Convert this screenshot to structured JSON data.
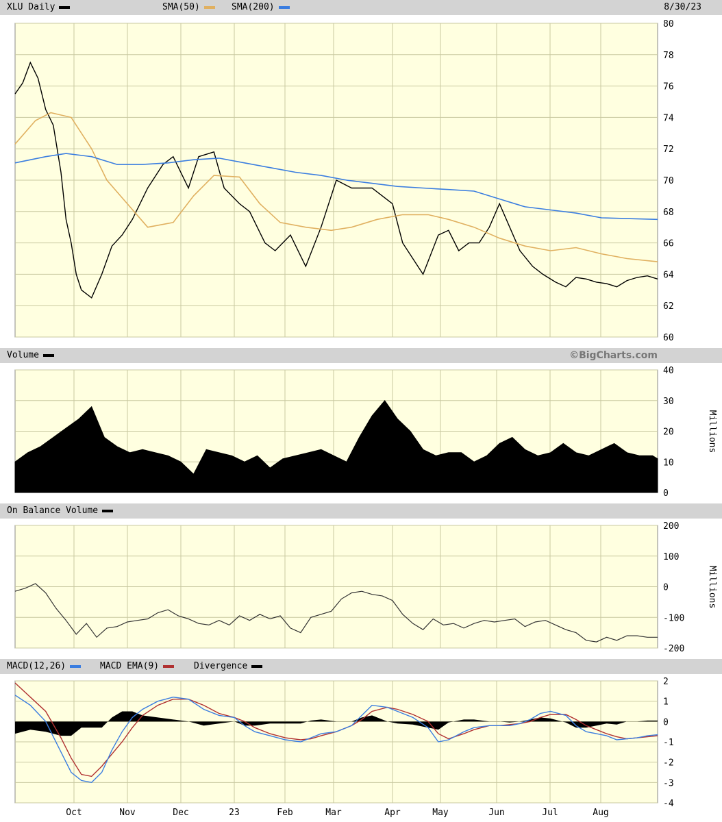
{
  "price_header": {
    "symbol_label": "XLU Daily",
    "sma50_label": "SMA(50)",
    "sma200_label": "SMA(200)",
    "date_label": "8/30/23",
    "sma50_color": "#e0b060",
    "sma200_color": "#3a7de0",
    "price_color": "#000000"
  },
  "volume_header": {
    "label": "Volume",
    "watermark": "©BigCharts.com"
  },
  "obv_header": {
    "label": "On Balance Volume"
  },
  "macd_header": {
    "macd_label": "MACD(12,26)",
    "ema_label": "MACD EMA(9)",
    "div_label": "Divergence",
    "macd_color": "#3a7de0",
    "ema_color": "#b03030"
  },
  "units": {
    "volume": "Millions",
    "obv": "Millions"
  },
  "style": {
    "plot_bg": "#ffffe0",
    "grid": "#c8c8a0"
  },
  "chart_data": [
    {
      "type": "line",
      "panel": "price",
      "ylim": [
        60,
        80
      ],
      "y_ticks": [
        "80",
        "78",
        "76",
        "74",
        "72",
        "70",
        "68",
        "66",
        "64",
        "62",
        "60"
      ],
      "months": [
        "Oct",
        "Nov",
        "Dec",
        "23",
        "Feb",
        "Mar",
        "Apr",
        "May",
        "Jun",
        "Jul",
        "Aug"
      ],
      "series": [
        {
          "name": "XLU Daily",
          "x": [
            0,
            3,
            6,
            9,
            12,
            15,
            18,
            20,
            22,
            24,
            26,
            30,
            34,
            38,
            42,
            46,
            52,
            58,
            62,
            68,
            72,
            78,
            82,
            88,
            92,
            95,
            98,
            102,
            108,
            114,
            120,
            126,
            132,
            140,
            148,
            152,
            156,
            160,
            166,
            170,
            174,
            178,
            182,
            186,
            190,
            194,
            198,
            203,
            207,
            212,
            216,
            220,
            224,
            228,
            232,
            236,
            240,
            244,
            248,
            252
          ],
          "y": [
            75.5,
            76.2,
            77.5,
            76.5,
            74.5,
            73.5,
            70.5,
            67.5,
            66,
            64,
            63,
            62.5,
            64,
            65.8,
            66.5,
            67.5,
            69.5,
            71,
            71.5,
            69.5,
            71.5,
            71.8,
            69.5,
            68.5,
            68,
            67,
            66,
            65.5,
            66.5,
            64.5,
            67,
            70,
            69.5,
            69.5,
            68.5,
            66,
            65,
            64,
            66.5,
            66.8,
            65.5,
            66,
            66,
            67,
            68.5,
            67,
            65.5,
            64.5,
            64,
            63.5,
            63.2,
            63.8,
            63.7,
            63.5,
            63.4,
            63.2,
            63.6,
            63.8,
            63.9,
            63.7
          ]
        },
        {
          "name": "SMA(50)",
          "x": [
            0,
            8,
            14,
            22,
            30,
            36,
            44,
            52,
            62,
            70,
            78,
            88,
            96,
            104,
            114,
            124,
            132,
            142,
            152,
            162,
            170,
            180,
            190,
            200,
            210,
            220,
            230,
            240,
            252
          ],
          "y": [
            72.3,
            73.8,
            74.3,
            74,
            72,
            70,
            68.5,
            67,
            67.3,
            69,
            70.3,
            70.2,
            68.5,
            67.3,
            67,
            66.8,
            67,
            67.5,
            67.8,
            67.8,
            67.5,
            67,
            66.3,
            65.8,
            65.5,
            65.7,
            65.3,
            65,
            64.8
          ]
        },
        {
          "name": "SMA(200)",
          "x": [
            0,
            12,
            20,
            30,
            40,
            50,
            60,
            70,
            80,
            90,
            100,
            110,
            120,
            130,
            140,
            150,
            160,
            170,
            180,
            190,
            200,
            210,
            220,
            230,
            240,
            252
          ],
          "y": [
            71.1,
            71.5,
            71.7,
            71.5,
            71,
            71,
            71.1,
            71.3,
            71.4,
            71.1,
            70.8,
            70.5,
            70.3,
            70,
            69.8,
            69.6,
            69.5,
            69.4,
            69.3,
            68.8,
            68.3,
            68.1,
            67.9,
            67.6,
            67.55,
            67.5
          ]
        }
      ]
    },
    {
      "type": "area",
      "panel": "volume",
      "ylim": [
        0,
        40
      ],
      "y_ticks": [
        "40",
        "30",
        "20",
        "10",
        "0"
      ],
      "x": [
        0,
        5,
        10,
        15,
        20,
        25,
        30,
        35,
        40,
        45,
        50,
        55,
        60,
        65,
        70,
        75,
        80,
        85,
        90,
        95,
        100,
        105,
        110,
        115,
        120,
        125,
        130,
        135,
        140,
        145,
        150,
        155,
        160,
        165,
        170,
        175,
        180,
        185,
        190,
        195,
        200,
        205,
        210,
        215,
        220,
        225,
        230,
        235,
        240,
        245,
        250,
        252
      ],
      "values": [
        10,
        13,
        15,
        18,
        21,
        24,
        28,
        18,
        15,
        13,
        14,
        13,
        12,
        10,
        6,
        14,
        13,
        12,
        10,
        12,
        8,
        11,
        12,
        13,
        14,
        12,
        10,
        18,
        25,
        30,
        24,
        20,
        14,
        12,
        13,
        13,
        10,
        12,
        16,
        18,
        14,
        12,
        13,
        16,
        13,
        12,
        14,
        16,
        13,
        12,
        12,
        11
      ]
    },
    {
      "type": "line",
      "panel": "obv",
      "ylim": [
        -200,
        200
      ],
      "y_ticks": [
        "200",
        "100",
        "0",
        "-100",
        "-200"
      ],
      "series": [
        {
          "name": "On Balance Volume",
          "x": [
            0,
            4,
            8,
            12,
            16,
            20,
            24,
            28,
            32,
            36,
            40,
            44,
            48,
            52,
            56,
            60,
            64,
            68,
            72,
            76,
            80,
            84,
            88,
            92,
            96,
            100,
            104,
            108,
            112,
            116,
            120,
            124,
            128,
            132,
            136,
            140,
            144,
            148,
            152,
            156,
            160,
            164,
            168,
            172,
            176,
            180,
            184,
            188,
            192,
            196,
            200,
            204,
            208,
            212,
            216,
            220,
            224,
            228,
            232,
            236,
            240,
            244,
            248,
            252
          ],
          "y": [
            -15,
            -5,
            10,
            -20,
            -70,
            -110,
            -155,
            -120,
            -165,
            -135,
            -130,
            -115,
            -110,
            -105,
            -85,
            -75,
            -95,
            -105,
            -120,
            -125,
            -110,
            -125,
            -95,
            -110,
            -90,
            -105,
            -95,
            -135,
            -150,
            -100,
            -90,
            -80,
            -40,
            -20,
            -15,
            -25,
            -30,
            -45,
            -90,
            -120,
            -140,
            -105,
            -125,
            -120,
            -135,
            -120,
            -110,
            -115,
            -110,
            -105,
            -130,
            -115,
            -110,
            -125,
            -140,
            -150,
            -175,
            -180,
            -165,
            -175,
            -160,
            -160,
            -165,
            -165
          ]
        }
      ]
    },
    {
      "type": "line",
      "panel": "macd",
      "ylim": [
        -4,
        2
      ],
      "y_ticks": [
        "2",
        "1",
        "0",
        "-1",
        "-2",
        "-3",
        "-4"
      ],
      "series": [
        {
          "name": "MACD(12,26)",
          "x": [
            0,
            6,
            12,
            18,
            22,
            26,
            30,
            34,
            38,
            42,
            46,
            50,
            56,
            62,
            68,
            74,
            80,
            86,
            90,
            94,
            100,
            106,
            112,
            116,
            120,
            126,
            132,
            136,
            140,
            146,
            150,
            156,
            162,
            166,
            170,
            176,
            180,
            186,
            190,
            194,
            198,
            202,
            206,
            210,
            216,
            220,
            224,
            228,
            232,
            236,
            240,
            244,
            248,
            252
          ],
          "y": [
            1.3,
            0.8,
            0,
            -1.5,
            -2.5,
            -2.9,
            -3,
            -2.5,
            -1.4,
            -0.5,
            0.2,
            0.6,
            1.0,
            1.2,
            1.1,
            0.6,
            0.3,
            0.2,
            -0.2,
            -0.5,
            -0.7,
            -0.9,
            -1.0,
            -0.8,
            -0.6,
            -0.5,
            -0.2,
            0.3,
            0.8,
            0.7,
            0.5,
            0.2,
            -0.3,
            -1.0,
            -0.9,
            -0.5,
            -0.3,
            -0.2,
            -0.2,
            -0.2,
            -0.1,
            0.1,
            0.4,
            0.5,
            0.3,
            -0.2,
            -0.5,
            -0.6,
            -0.7,
            -0.9,
            -0.85,
            -0.8,
            -0.7,
            -0.65
          ]
        },
        {
          "name": "MACD EMA(9)",
          "x": [
            0,
            6,
            12,
            18,
            22,
            26,
            30,
            34,
            38,
            42,
            46,
            50,
            56,
            62,
            68,
            74,
            80,
            86,
            90,
            94,
            100,
            106,
            112,
            116,
            120,
            126,
            132,
            136,
            140,
            146,
            150,
            156,
            162,
            166,
            170,
            176,
            180,
            186,
            190,
            194,
            198,
            202,
            206,
            210,
            216,
            220,
            224,
            228,
            232,
            236,
            240,
            244,
            248,
            252
          ],
          "y": [
            1.9,
            1.2,
            0.5,
            -0.8,
            -1.8,
            -2.6,
            -2.7,
            -2.2,
            -1.6,
            -1.0,
            -0.3,
            0.3,
            0.8,
            1.1,
            1.1,
            0.8,
            0.4,
            0.2,
            0,
            -0.3,
            -0.6,
            -0.8,
            -0.9,
            -0.85,
            -0.7,
            -0.5,
            -0.2,
            0.1,
            0.5,
            0.7,
            0.6,
            0.35,
            0,
            -0.6,
            -0.85,
            -0.6,
            -0.4,
            -0.2,
            -0.2,
            -0.15,
            -0.1,
            0,
            0.2,
            0.35,
            0.35,
            0.1,
            -0.2,
            -0.4,
            -0.6,
            -0.75,
            -0.85,
            -0.8,
            -0.75,
            -0.7
          ]
        },
        {
          "name": "Divergence",
          "x": [
            0,
            6,
            12,
            18,
            22,
            26,
            30,
            34,
            38,
            42,
            46,
            50,
            56,
            62,
            68,
            74,
            80,
            86,
            90,
            94,
            100,
            106,
            112,
            116,
            120,
            126,
            132,
            136,
            140,
            146,
            150,
            156,
            162,
            166,
            170,
            176,
            180,
            186,
            190,
            194,
            198,
            202,
            206,
            210,
            216,
            220,
            224,
            228,
            232,
            236,
            240,
            244,
            248,
            252
          ],
          "y": [
            -0.6,
            -0.4,
            -0.5,
            -0.7,
            -0.7,
            -0.3,
            -0.3,
            -0.3,
            0.2,
            0.5,
            0.5,
            0.3,
            0.2,
            0.1,
            0,
            -0.2,
            -0.1,
            0,
            -0.2,
            -0.2,
            -0.1,
            -0.1,
            -0.1,
            0.05,
            0.1,
            0,
            0,
            0.2,
            0.3,
            0,
            -0.1,
            -0.15,
            -0.3,
            -0.4,
            -0.05,
            0.1,
            0.1,
            0,
            0,
            -0.05,
            0,
            0.1,
            0.2,
            0.15,
            -0.05,
            -0.3,
            -0.3,
            -0.2,
            -0.1,
            -0.15,
            0,
            0,
            0.05,
            0.05
          ]
        }
      ]
    }
  ]
}
